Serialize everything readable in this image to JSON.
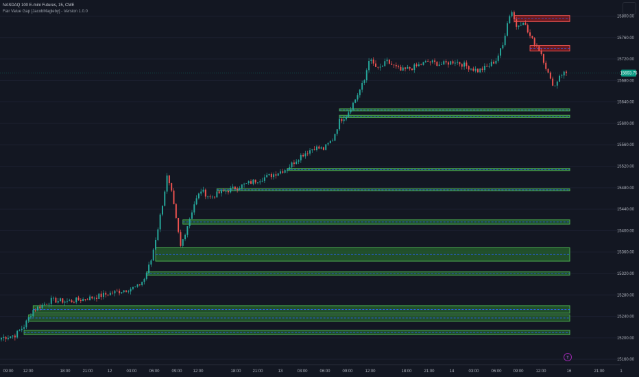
{
  "header": {
    "symbol_line": "NASDAQ 100 E-mini Futures, 15, CME",
    "indicator_line": "Fair Value Gap [JacobMagleby] - Version 1.0.0"
  },
  "colors": {
    "background": "#131722",
    "bull_candle": "#26a69a",
    "bear_candle": "#ef5350",
    "bull_zone_fill": "#2e7d32",
    "bull_zone_border": "#4caf50",
    "bear_zone_fill": "#b71c1c",
    "bear_zone_border": "#ef5350",
    "midline": "#2962ff",
    "price_tag": "#089981"
  },
  "chart_data": {
    "type": "candlestick",
    "y_axis": {
      "ticks": [
        15160,
        15200,
        15240,
        15280,
        15320,
        15360,
        15400,
        15440,
        15480,
        15520,
        15560,
        15600,
        15640,
        15680,
        15720,
        15760,
        15800
      ],
      "range": [
        15150,
        15830
      ]
    },
    "x_axis": {
      "tick_labels": [
        "09:00",
        "12:00",
        "18:00",
        "21:00",
        "12",
        "03:00",
        "06:00",
        "09:00",
        "12:00",
        "18:00",
        "21:00",
        "13",
        "03:00",
        "06:00",
        "09:00",
        "12:00",
        "18:00",
        "21:00",
        "14",
        "03:00",
        "06:00",
        "09:00",
        "12:00",
        "16",
        "21:00",
        "1"
      ]
    },
    "last_price": "15693.75",
    "close_path": [
      [
        0,
        15200
      ],
      [
        6,
        15205
      ],
      [
        10,
        15222
      ],
      [
        14,
        15252
      ],
      [
        22,
        15270
      ],
      [
        30,
        15268
      ],
      [
        40,
        15275
      ],
      [
        48,
        15283
      ],
      [
        55,
        15290
      ],
      [
        60,
        15295
      ],
      [
        63,
        15310
      ],
      [
        66,
        15345
      ],
      [
        69,
        15405
      ],
      [
        71,
        15450
      ],
      [
        73,
        15500
      ],
      [
        75,
        15470
      ],
      [
        77,
        15420
      ],
      [
        79,
        15370
      ],
      [
        82,
        15410
      ],
      [
        85,
        15450
      ],
      [
        88,
        15475
      ],
      [
        92,
        15462
      ],
      [
        96,
        15470
      ],
      [
        102,
        15478
      ],
      [
        110,
        15490
      ],
      [
        120,
        15505
      ],
      [
        126,
        15516
      ],
      [
        132,
        15540
      ],
      [
        138,
        15555
      ],
      [
        142,
        15552
      ],
      [
        146,
        15570
      ],
      [
        149,
        15605
      ],
      [
        152,
        15615
      ],
      [
        156,
        15645
      ],
      [
        160,
        15680
      ],
      [
        162,
        15720
      ],
      [
        164,
        15710
      ],
      [
        166,
        15700
      ],
      [
        170,
        15715
      ],
      [
        176,
        15698
      ],
      [
        182,
        15705
      ],
      [
        188,
        15715
      ],
      [
        194,
        15710
      ],
      [
        200,
        15716
      ],
      [
        206,
        15705
      ],
      [
        210,
        15698
      ],
      [
        214,
        15705
      ],
      [
        218,
        15718
      ],
      [
        221,
        15745
      ],
      [
        223,
        15790
      ],
      [
        225,
        15810
      ],
      [
        227,
        15780
      ],
      [
        230,
        15792
      ],
      [
        232,
        15770
      ],
      [
        234,
        15755
      ],
      [
        236,
        15745
      ],
      [
        238,
        15730
      ],
      [
        240,
        15705
      ],
      [
        242,
        15680
      ],
      [
        244,
        15670
      ],
      [
        246,
        15690
      ],
      [
        248,
        15694
      ]
    ],
    "candle_count": 250,
    "bull_fvg_zones": [
      {
        "start": 149,
        "top": 15627,
        "bottom": 15625
      },
      {
        "start": 149,
        "top": 15615,
        "bottom": 15611
      },
      {
        "start": 126,
        "top": 15516,
        "bottom": 15512
      },
      {
        "start": 95,
        "top": 15478,
        "bottom": 15474
      },
      {
        "start": 80,
        "top": 15420,
        "bottom": 15412
      },
      {
        "start": 68,
        "top": 15368,
        "bottom": 15343
      },
      {
        "start": 64,
        "top": 15323,
        "bottom": 15317
      },
      {
        "start": 14,
        "top": 15260,
        "bottom": 15246
      },
      {
        "start": 12,
        "top": 15243,
        "bottom": 15231
      },
      {
        "start": 10,
        "top": 15214,
        "bottom": 15206
      }
    ],
    "bear_fvg_zones": [
      {
        "start": 226,
        "top": 15801,
        "bottom": 15790
      },
      {
        "start": 233,
        "top": 15745,
        "bottom": 15735
      }
    ]
  },
  "toolbar": {
    "logo_glyph": "T"
  }
}
